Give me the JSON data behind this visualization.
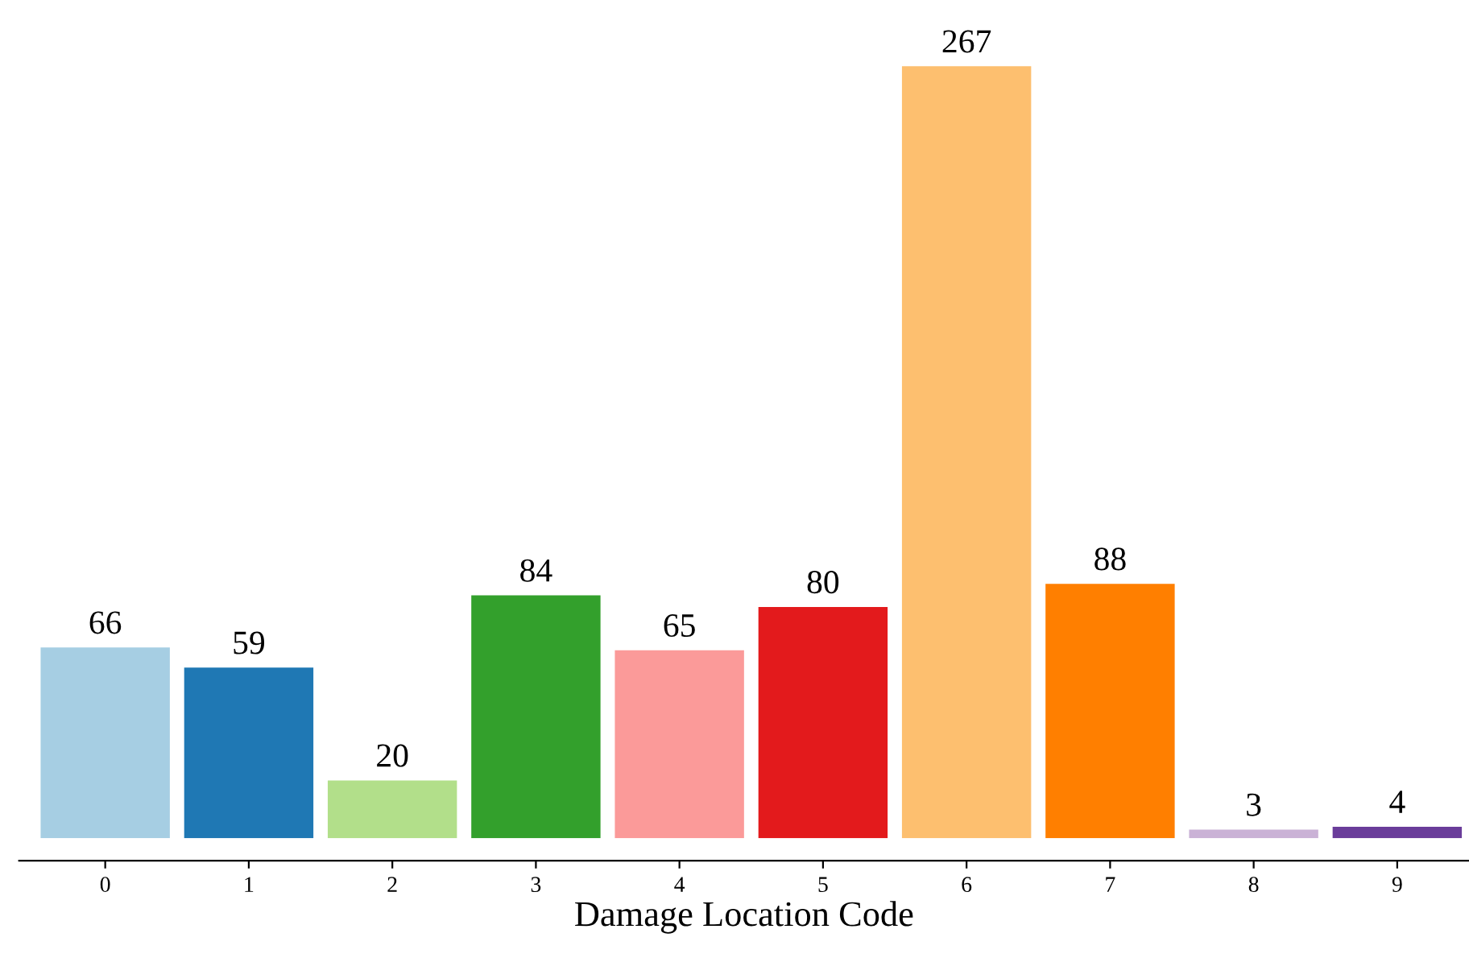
{
  "chart_data": {
    "type": "bar",
    "xlabel": "Damage Location Code",
    "categories": [
      "0",
      "1",
      "2",
      "3",
      "4",
      "5",
      "6",
      "7",
      "8",
      "9"
    ],
    "values": [
      66,
      59,
      20,
      84,
      65,
      80,
      267,
      88,
      3,
      4
    ],
    "colors": [
      "#a6cee3",
      "#1f78b4",
      "#b2df8a",
      "#33a02c",
      "#fb9a99",
      "#e31a1c",
      "#fdbf6f",
      "#ff7f00",
      "#cab2d6",
      "#6a3d9a"
    ],
    "data_labels": true,
    "tick_labels": "x",
    "grid": false
  }
}
